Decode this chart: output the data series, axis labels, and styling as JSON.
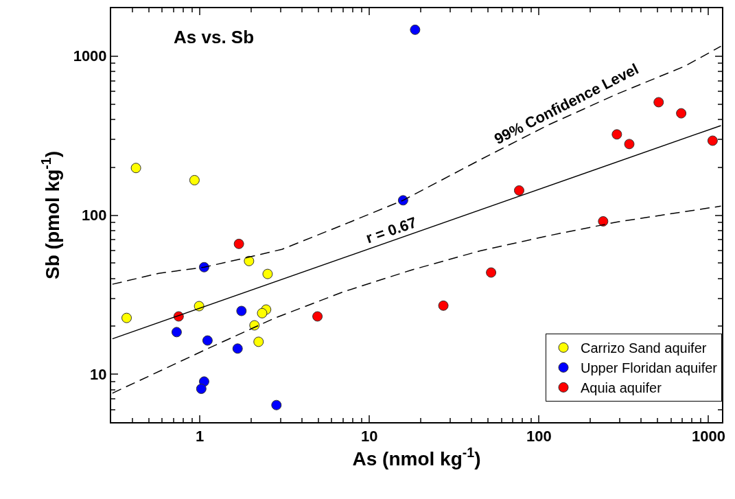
{
  "chart_data": {
    "type": "scatter",
    "title": "As vs. Sb",
    "xlabel": "As (nmol kg$^{-1}$)",
    "ylabel": "Sb (pmol kg$^{-1}$)",
    "log": "xy",
    "xlim": [
      0.3,
      1200
    ],
    "ylim": [
      5,
      2000
    ],
    "xticks": [
      1,
      10,
      100,
      1000
    ],
    "yticks": [
      10,
      100,
      1000
    ],
    "legend": "bottom right",
    "series": [
      {
        "name": "Carrizo Sand aquifer",
        "color": "#ffff00",
        "marker": "circle",
        "x": [
          0.42,
          0.93,
          0.37,
          0.99,
          1.95,
          2.51,
          2.46,
          2.33,
          2.1,
          2.22
        ],
        "values": [
          198,
          166,
          22.6,
          26.8,
          51.5,
          42.7,
          25.5,
          24.2,
          20.3,
          16.0
        ]
      },
      {
        "name": "Upper Floridan aquifer",
        "color": "#0000ff",
        "marker": "circle",
        "x": [
          18.6,
          15.8,
          1.06,
          1.76,
          0.73,
          1.11,
          1.67,
          1.06,
          1.02,
          2.83
        ],
        "values": [
          1465,
          124,
          47.1,
          25.0,
          18.4,
          16.3,
          14.5,
          9.0,
          8.1,
          6.4
        ]
      },
      {
        "name": "Aquia aquifer",
        "color": "#ff0000",
        "marker": "circle",
        "x": [
          1.7,
          0.75,
          4.94,
          27.3,
          52.2,
          76.4,
          239,
          288,
          341,
          508,
          690,
          1057
        ],
        "values": [
          66,
          23.1,
          23.1,
          27.0,
          43.6,
          143,
          91.5,
          322,
          280,
          513,
          437,
          294
        ]
      },
      {
        "type": "line",
        "color": "#000000",
        "line_style": "solid",
        "marker": "none",
        "x": [
          0.305,
          1183
        ],
        "values": [
          16.7,
          366
        ]
      },
      {
        "type": "line",
        "color": "#000000",
        "line_style": "dashed",
        "marker": "none",
        "x": [
          0.305,
          0.573,
          1.06,
          1.75,
          3.05,
          7.03,
          15.8,
          45.0,
          114,
          288,
          729,
          1183
        ],
        "values": [
          36.8,
          43.1,
          47.1,
          53.1,
          61.0,
          87.1,
          124,
          223,
          370,
          577,
          867,
          1153
        ]
      },
      {
        "type": "line",
        "color": "#000000",
        "line_style": "dashed",
        "marker": "none",
        "x": [
          0.305,
          1.1,
          2.78,
          7.03,
          17.8,
          45.0,
          114,
          288,
          1183
        ],
        "values": [
          7.6,
          14.4,
          22.6,
          33.0,
          45.3,
          59.7,
          74.3,
          90.6,
          114
        ]
      }
    ],
    "annotations": [
      "r = 0.67",
      "99% Confidence Level"
    ]
  }
}
